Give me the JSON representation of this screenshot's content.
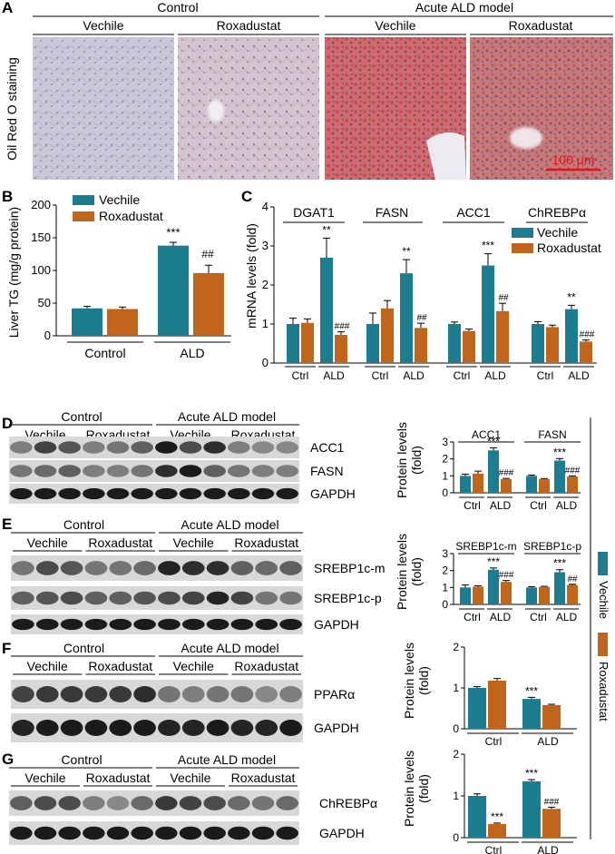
{
  "panel_letters": {
    "a": "A",
    "b": "B",
    "c": "C",
    "d": "D",
    "e": "E",
    "f": "F",
    "g": "G"
  },
  "colors": {
    "vechile": "#1b7d8f",
    "roxadustat": "#c1651b"
  },
  "panel_a": {
    "groups": [
      "Control",
      "Acute ALD model"
    ],
    "treatments": [
      "Vechile",
      "Roxadustat",
      "Vechile",
      "Roxadustat"
    ],
    "row_label": "Oil Red O staining",
    "scale_bar": "100 μm"
  },
  "panel_b": {
    "ylabel": "Liver TG (mg/g protein)",
    "legend": [
      "Vechile",
      "Roxadustat"
    ],
    "stars": "***",
    "hashes": "##"
  },
  "panel_c": {
    "ylabel": "mRNA levels (fold)",
    "legend": [
      "Vechile",
      "Roxadustat"
    ],
    "genes": [
      "DGAT1",
      "FASN",
      "ACC1",
      "ChREBPα"
    ]
  },
  "blots": {
    "control": "Control",
    "model": "Acute ALD model",
    "vechile": "Vechile",
    "roxadustat": "Roxadustat",
    "d_bands": [
      "ACC1",
      "FASN",
      "GAPDH"
    ],
    "e_bands": [
      "SREBP1c-m",
      "SREBP1c-p",
      "GAPDH"
    ],
    "f_bands": [
      "PPARα",
      "GAPDH"
    ],
    "g_bands": [
      "ChREBPα",
      "GAPDH"
    ]
  },
  "side_legend": [
    "Vechile",
    "Roxadustat"
  ],
  "protein_ylabel": [
    "Protein levels",
    "(fold)"
  ],
  "chart_data": [
    {
      "id": "B",
      "type": "bar",
      "categories": [
        "Control",
        "ALD"
      ],
      "ylabel": "Liver TG (mg/g protein)",
      "ylim": [
        0,
        200
      ],
      "series": [
        {
          "name": "Vechile",
          "values": [
            42,
            138
          ],
          "errors": [
            3,
            5
          ]
        },
        {
          "name": "Roxadustat",
          "values": [
            41,
            96
          ],
          "errors": [
            3,
            12
          ]
        }
      ],
      "annotations": [
        "***",
        "##"
      ]
    },
    {
      "id": "C",
      "type": "bar",
      "ylabel": "mRNA levels (fold)",
      "ylim": [
        0,
        4
      ],
      "groups": [
        "DGAT1",
        "FASN",
        "ACC1",
        "ChREBPα"
      ],
      "categories": [
        "Ctrl",
        "ALD"
      ],
      "series": [
        {
          "name": "Vechile",
          "values": [
            [
              1.0,
              2.7
            ],
            [
              1.0,
              2.3
            ],
            [
              1.0,
              2.5
            ],
            [
              1.0,
              1.38
            ]
          ],
          "errors": [
            [
              0.15,
              0.5
            ],
            [
              0.28,
              0.35
            ],
            [
              0.05,
              0.3
            ],
            [
              0.06,
              0.1
            ]
          ]
        },
        {
          "name": "Roxadustat",
          "values": [
            [
              1.03,
              0.72
            ],
            [
              1.4,
              0.9
            ],
            [
              0.82,
              1.33
            ],
            [
              0.92,
              0.55
            ]
          ],
          "errors": [
            [
              0.1,
              0.08
            ],
            [
              0.2,
              0.12
            ],
            [
              0.05,
              0.2
            ],
            [
              0.05,
              0.04
            ]
          ]
        }
      ],
      "annotations": [
        "**",
        "###",
        "**",
        "##",
        "***",
        "##",
        "**",
        "###"
      ]
    },
    {
      "id": "D",
      "type": "bar",
      "ylabel": "Protein levels (fold)",
      "ylim": [
        0,
        3
      ],
      "groups": [
        "ACC1",
        "FASN"
      ],
      "categories": [
        "Ctrl",
        "ALD"
      ],
      "series": [
        {
          "name": "Vechile",
          "values": [
            [
              1.0,
              2.5
            ],
            [
              1.0,
              1.9
            ]
          ],
          "errors": [
            [
              0.1,
              0.15
            ],
            [
              0.05,
              0.12
            ]
          ]
        },
        {
          "name": "Roxadustat",
          "values": [
            [
              1.13,
              0.8
            ],
            [
              0.8,
              0.96
            ]
          ],
          "errors": [
            [
              0.15,
              0.05
            ],
            [
              0.04,
              0.04
            ]
          ]
        }
      ],
      "annotations": [
        "***",
        "###",
        "***",
        "###"
      ]
    },
    {
      "id": "E",
      "type": "bar",
      "ylabel": "Protein levels (fold)",
      "ylim": [
        0,
        3
      ],
      "groups": [
        "SREBP1c-m",
        "SREBP1c-p"
      ],
      "categories": [
        "Ctrl",
        "ALD"
      ],
      "series": [
        {
          "name": "Vechile",
          "values": [
            [
              1.0,
              2.05
            ],
            [
              1.0,
              1.9
            ]
          ],
          "errors": [
            [
              0.15,
              0.1
            ],
            [
              0.05,
              0.15
            ]
          ]
        },
        {
          "name": "Roxadustat",
          "values": [
            [
              1.05,
              1.33
            ],
            [
              1.03,
              1.15
            ]
          ],
          "errors": [
            [
              0.05,
              0.08
            ],
            [
              0.04,
              0.04
            ]
          ]
        }
      ],
      "annotations": [
        "***",
        "###",
        "***",
        "##"
      ]
    },
    {
      "id": "F",
      "type": "bar",
      "ylabel": "Protein levels (fold)",
      "ylim": [
        0,
        2
      ],
      "categories": [
        "Ctrl",
        "ALD"
      ],
      "series": [
        {
          "name": "Vechile",
          "values": [
            1.0,
            0.73
          ],
          "errors": [
            0.03,
            0.04
          ]
        },
        {
          "name": "Roxadustat",
          "values": [
            1.18,
            0.58
          ],
          "errors": [
            0.05,
            0.02
          ]
        }
      ],
      "annotations": [
        "***"
      ]
    },
    {
      "id": "G",
      "type": "bar",
      "ylabel": "Protein levels (fold)",
      "ylim": [
        0,
        2
      ],
      "categories": [
        "Ctrl",
        "ALD"
      ],
      "series": [
        {
          "name": "Vechile",
          "values": [
            1.0,
            1.35
          ],
          "errors": [
            0.05,
            0.04
          ]
        },
        {
          "name": "Roxadustat",
          "values": [
            0.33,
            0.69
          ],
          "errors": [
            0.02,
            0.04
          ]
        }
      ],
      "annotations": [
        "***",
        "***",
        "###"
      ]
    }
  ]
}
